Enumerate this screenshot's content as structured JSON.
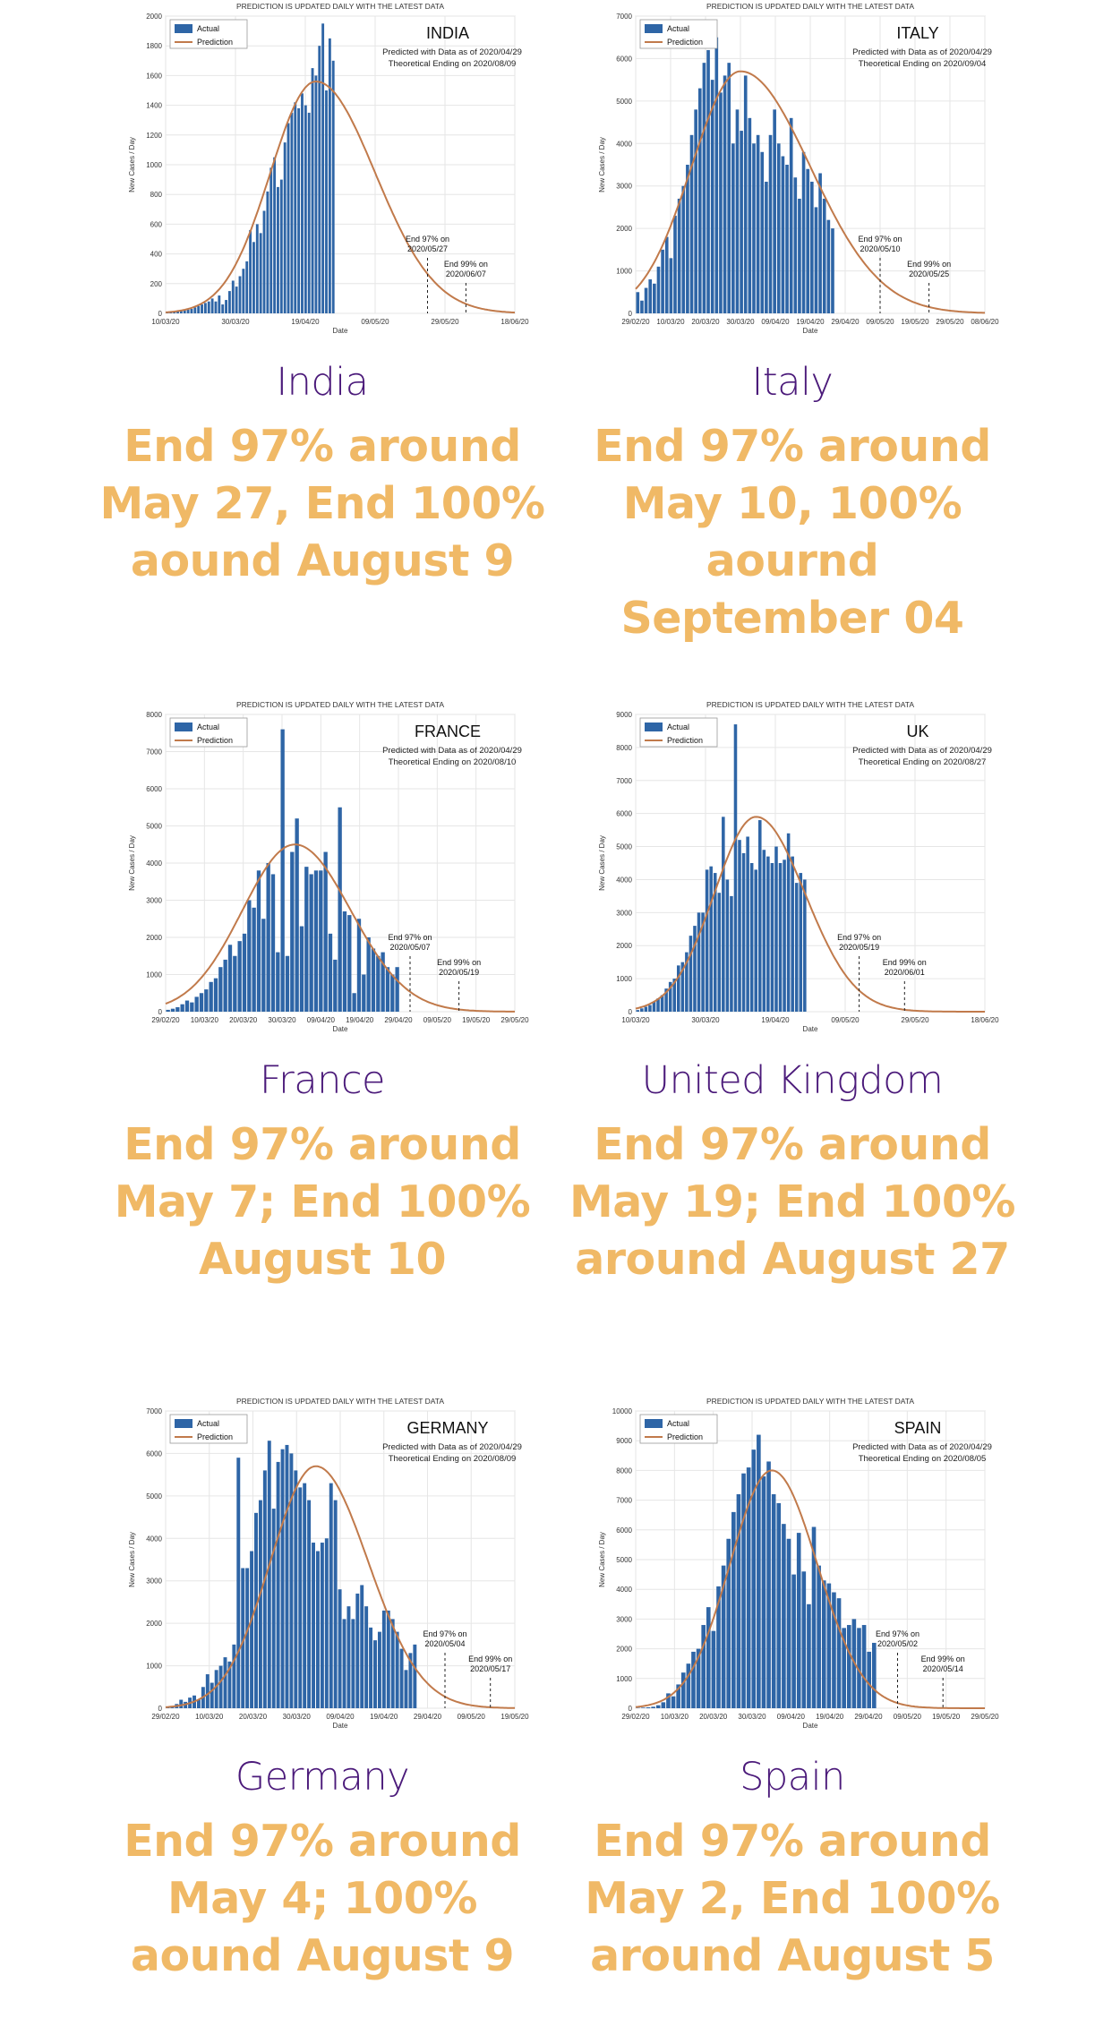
{
  "header_text": "PREDICTION IS UPDATED DAILY WITH THE LATEST DATA",
  "colors": {
    "bar": "#2e65a6",
    "prediction": "#c17a4b",
    "country_label": "#4b1a7a",
    "summary": "#f0b966"
  },
  "chart_data": [
    {
      "type": "bar",
      "title": "INDIA",
      "subtitle": [
        "Predicted with Data as of 2020/04/29",
        "Theoretical Ending on 2020/08/09"
      ],
      "ylabel": "New Cases / Day",
      "xlabel": "Date",
      "legend": [
        "Actual",
        "Prediction"
      ],
      "legend_position": "top-left",
      "grid": true,
      "ylim": [
        0,
        2000
      ],
      "yticks": [
        0,
        200,
        400,
        600,
        800,
        1000,
        1200,
        1400,
        1600,
        1800,
        2000
      ],
      "xticklabels": [
        "10/03/20",
        "30/03/20",
        "19/04/20",
        "09/05/20",
        "29/05/20",
        "18/06/20"
      ],
      "bars_end_fraction": 0.485,
      "values": [
        5,
        8,
        10,
        12,
        15,
        20,
        25,
        30,
        40,
        50,
        60,
        70,
        80,
        100,
        80,
        120,
        60,
        90,
        150,
        220,
        180,
        250,
        300,
        350,
        560,
        480,
        600,
        540,
        690,
        820,
        980,
        1050,
        850,
        900,
        1150,
        1280,
        1350,
        1420,
        1380,
        1480,
        1400,
        1350,
        1650,
        1600,
        1800,
        1950,
        1500,
        1850,
        1700
      ],
      "prediction_peak": 1560,
      "prediction_peak_fraction": 0.43,
      "prediction_spread_left": 0.13,
      "prediction_spread_right": 0.17,
      "annotations": [
        {
          "text": [
            "End 97% on",
            "2020/05/27"
          ],
          "x_fraction": 0.75
        },
        {
          "text": [
            "End 99% on",
            "2020/06/07"
          ],
          "x_fraction": 0.86
        }
      ]
    },
    {
      "type": "bar",
      "title": "ITALY",
      "subtitle": [
        "Predicted with Data as of 2020/04/29",
        "Theoretical Ending on 2020/09/04"
      ],
      "ylabel": "New Cases / Day",
      "xlabel": "Date",
      "legend": [
        "Actual",
        "Prediction"
      ],
      "legend_position": "top-left",
      "grid": true,
      "ylim": [
        0,
        7000
      ],
      "yticks": [
        0,
        1000,
        2000,
        3000,
        4000,
        5000,
        6000,
        7000
      ],
      "xticklabels": [
        "29/02/20",
        "10/03/20",
        "20/03/20",
        "30/03/20",
        "09/04/20",
        "19/04/20",
        "29/04/20",
        "09/05/20",
        "19/05/20",
        "29/05/20",
        "08/06/20"
      ],
      "bars_end_fraction": 0.57,
      "values": [
        500,
        300,
        600,
        800,
        700,
        1100,
        1500,
        1800,
        1300,
        2300,
        2700,
        3000,
        3500,
        4200,
        4800,
        5300,
        5900,
        6200,
        5500,
        6500,
        5200,
        5600,
        5900,
        4000,
        4800,
        4300,
        5600,
        4600,
        4000,
        4200,
        3800,
        3100,
        4200,
        4800,
        4000,
        3700,
        3500,
        4600,
        3200,
        2700,
        3800,
        3400,
        3100,
        2500,
        3300,
        2700,
        2200,
        2000
      ],
      "prediction_peak": 5700,
      "prediction_peak_fraction": 0.3,
      "prediction_spread_left": 0.14,
      "prediction_spread_right": 0.2,
      "annotations": [
        {
          "text": [
            "End 97% on",
            "2020/05/10"
          ],
          "x_fraction": 0.7
        },
        {
          "text": [
            "End 99% on",
            "2020/05/25"
          ],
          "x_fraction": 0.84
        }
      ]
    },
    {
      "type": "bar",
      "title": "FRANCE",
      "subtitle": [
        "Predicted with Data as of 2020/04/29",
        "Theoretical Ending on 2020/08/10"
      ],
      "ylabel": "New Cases / Day",
      "xlabel": "Date",
      "legend": [
        "Actual",
        "Prediction"
      ],
      "legend_position": "top-left",
      "grid": true,
      "ylim": [
        0,
        8000
      ],
      "yticks": [
        0,
        1000,
        2000,
        3000,
        4000,
        5000,
        6000,
        7000,
        8000
      ],
      "xticklabels": [
        "29/02/20",
        "10/03/20",
        "20/03/20",
        "30/03/20",
        "09/04/20",
        "19/04/20",
        "29/04/20",
        "09/05/20",
        "19/05/20",
        "29/05/20"
      ],
      "bars_end_fraction": 0.67,
      "values": [
        50,
        80,
        120,
        200,
        300,
        250,
        400,
        500,
        600,
        800,
        900,
        1200,
        1400,
        1800,
        1500,
        1900,
        2100,
        3000,
        2800,
        3800,
        2500,
        4000,
        3700,
        1600,
        7600,
        1500,
        4300,
        5200,
        2300,
        3900,
        3700,
        3800,
        3800,
        4300,
        2100,
        1400,
        5500,
        2700,
        2600,
        500,
        2500,
        1000,
        2000,
        1700,
        1500,
        1600,
        1200,
        1000,
        1200
      ],
      "prediction_peak": 4500,
      "prediction_peak_fraction": 0.37,
      "prediction_spread_left": 0.15,
      "prediction_spread_right": 0.16,
      "annotations": [
        {
          "text": [
            "End 97% on",
            "2020/05/07"
          ],
          "x_fraction": 0.7
        },
        {
          "text": [
            "End 99% on",
            "2020/05/19"
          ],
          "x_fraction": 0.84
        }
      ]
    },
    {
      "type": "bar",
      "title": "UK",
      "subtitle": [
        "Predicted with Data as of 2020/04/29",
        "Theoretical Ending on 2020/08/27"
      ],
      "ylabel": "New Cases / Day",
      "xlabel": "Date",
      "legend": [
        "Actual",
        "Prediction"
      ],
      "legend_position": "top-left",
      "grid": true,
      "ylim": [
        0,
        9000
      ],
      "yticks": [
        0,
        1000,
        2000,
        3000,
        4000,
        5000,
        6000,
        7000,
        8000,
        9000
      ],
      "xticklabels": [
        "10/03/20",
        "30/03/20",
        "19/04/20",
        "09/05/20",
        "29/05/20",
        "18/06/20"
      ],
      "bars_end_fraction": 0.49,
      "values": [
        50,
        100,
        150,
        200,
        300,
        400,
        500,
        700,
        900,
        1000,
        1400,
        1500,
        1800,
        2300,
        2600,
        3000,
        3000,
        4300,
        4400,
        4200,
        3600,
        5900,
        4000,
        3500,
        8700,
        5200,
        4800,
        5300,
        4500,
        4300,
        5800,
        4900,
        4700,
        4500,
        5000,
        4500,
        4600,
        5400,
        4700,
        3900,
        4200,
        4000
      ],
      "prediction_peak": 5900,
      "prediction_peak_fraction": 0.345,
      "prediction_spread_left": 0.12,
      "prediction_spread_right": 0.14,
      "annotations": [
        {
          "text": [
            "End 97% on",
            "2020/05/19"
          ],
          "x_fraction": 0.64
        },
        {
          "text": [
            "End 99% on",
            "2020/06/01"
          ],
          "x_fraction": 0.77
        }
      ]
    },
    {
      "type": "bar",
      "title": "GERMANY",
      "subtitle": [
        "Predicted with Data as of 2020/04/29",
        "Theoretical Ending on 2020/08/09"
      ],
      "ylabel": "New Cases / Day",
      "xlabel": "Date",
      "legend": [
        "Actual",
        "Prediction"
      ],
      "legend_position": "top-left",
      "grid": true,
      "ylim": [
        0,
        7000
      ],
      "yticks": [
        0,
        1000,
        2000,
        3000,
        4000,
        5000,
        6000,
        7000
      ],
      "xticklabels": [
        "29/02/20",
        "10/03/20",
        "20/03/20",
        "30/03/20",
        "09/04/20",
        "19/04/20",
        "29/04/20",
        "09/05/20",
        "19/05/20"
      ],
      "bars_end_fraction": 0.72,
      "values": [
        30,
        50,
        100,
        200,
        150,
        250,
        300,
        200,
        500,
        800,
        600,
        900,
        1000,
        1200,
        1100,
        1500,
        5900,
        3300,
        3300,
        3700,
        4600,
        4900,
        5600,
        6300,
        4700,
        5800,
        6100,
        6200,
        6000,
        5600,
        5200,
        5300,
        4900,
        3900,
        3700,
        3900,
        4000,
        5300,
        4900,
        2800,
        2100,
        2400,
        2100,
        2700,
        2900,
        2400,
        1900,
        1600,
        1800,
        2300,
        2300,
        2100,
        1800,
        1400,
        900,
        1300,
        1500
      ],
      "prediction_peak": 5700,
      "prediction_peak_fraction": 0.43,
      "prediction_spread_left": 0.13,
      "prediction_spread_right": 0.15,
      "annotations": [
        {
          "text": [
            "End 97% on",
            "2020/05/04"
          ],
          "x_fraction": 0.8
        },
        {
          "text": [
            "End 99% on",
            "2020/05/17"
          ],
          "x_fraction": 0.93
        }
      ]
    },
    {
      "type": "bar",
      "title": "SPAIN",
      "subtitle": [
        "Predicted with Data as of 2020/04/29",
        "Theoretical Ending on 2020/08/05"
      ],
      "ylabel": "New Cases / Day",
      "xlabel": "Date",
      "legend": [
        "Actual",
        "Prediction"
      ],
      "legend_position": "top-left",
      "grid": true,
      "ylim": [
        0,
        10000
      ],
      "yticks": [
        0,
        1000,
        2000,
        3000,
        4000,
        5000,
        6000,
        7000,
        8000,
        9000,
        10000
      ],
      "xticklabels": [
        "29/02/20",
        "10/03/20",
        "20/03/20",
        "30/03/20",
        "09/04/20",
        "19/04/20",
        "29/04/20",
        "09/05/20",
        "19/05/20",
        "29/05/20"
      ],
      "bars_end_fraction": 0.69,
      "values": [
        10,
        20,
        30,
        50,
        100,
        200,
        500,
        400,
        800,
        1200,
        1500,
        1900,
        2000,
        2800,
        3400,
        2600,
        4100,
        4800,
        5700,
        6600,
        7200,
        7900,
        8100,
        8700,
        9200,
        7800,
        8300,
        7200,
        6900,
        6200,
        5700,
        4500,
        5900,
        4600,
        3500,
        6100,
        4800,
        4300,
        4200,
        3900,
        3700,
        2700,
        2800,
        3000,
        2700,
        2800,
        1900,
        2200
      ],
      "prediction_peak": 8000,
      "prediction_peak_fraction": 0.39,
      "prediction_spread_left": 0.12,
      "prediction_spread_right": 0.13,
      "annotations": [
        {
          "text": [
            "End 97% on",
            "2020/05/02"
          ],
          "x_fraction": 0.75
        },
        {
          "text": [
            "End 99% on",
            "2020/05/14"
          ],
          "x_fraction": 0.88
        }
      ]
    }
  ],
  "cells": [
    {
      "country": "India",
      "summary": "End 97% around May 27, End 100% aound August 9"
    },
    {
      "country": "Italy",
      "summary": "End 97% around May 10, 100% aournd September 04"
    },
    {
      "country": "France",
      "summary": "End 97% around May 7; End 100% August 10"
    },
    {
      "country": "United Kingdom",
      "summary": "End 97% around May 19; End 100% around August 27"
    },
    {
      "country": "Germany",
      "summary": "End 97% around May 4; 100% aound August 9"
    },
    {
      "country": "Spain",
      "summary": "End 97% around May 2, End 100% around August 5"
    }
  ]
}
